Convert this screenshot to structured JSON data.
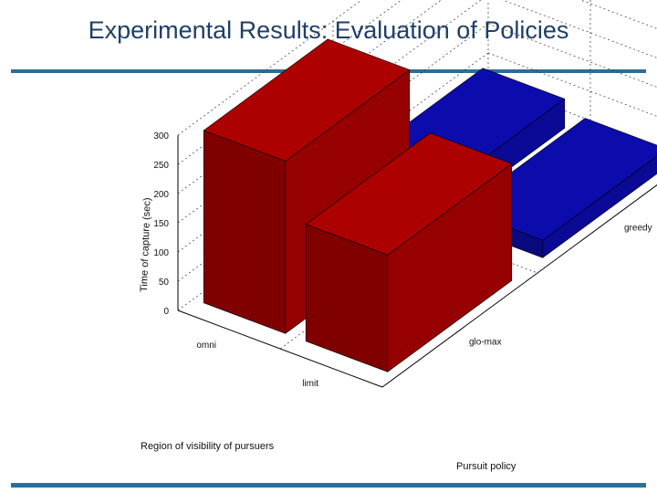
{
  "slide": {
    "title": "Experimental Results: Evaluation of Policies"
  },
  "colors": {
    "rule": "#2e6d96",
    "title": "#1f3f68",
    "omni_bar": "#0a0a96",
    "limited_bar": "#960000"
  },
  "chart_data": {
    "type": "bar",
    "subtype": "3d-bar",
    "zlabel": "Time of capture (sec)",
    "xlabel": "Region of visibility of pursuers",
    "ylabel": "Pursuit policy",
    "zlim": [
      0,
      300
    ],
    "zticks": [
      "0",
      "50",
      "100",
      "150",
      "200",
      "250",
      "300"
    ],
    "visibility_categories": [
      "omni",
      "limit"
    ],
    "policy_categories": [
      "greedy",
      "glo-max"
    ],
    "grid": true,
    "values": [
      {
        "visibility": "omni",
        "policy": "greedy",
        "value": 50
      },
      {
        "visibility": "omni",
        "policy": "glo-max",
        "value": 295
      },
      {
        "visibility": "limit",
        "policy": "greedy",
        "value": 30
      },
      {
        "visibility": "limit",
        "policy": "glo-max",
        "value": 200
      }
    ]
  }
}
